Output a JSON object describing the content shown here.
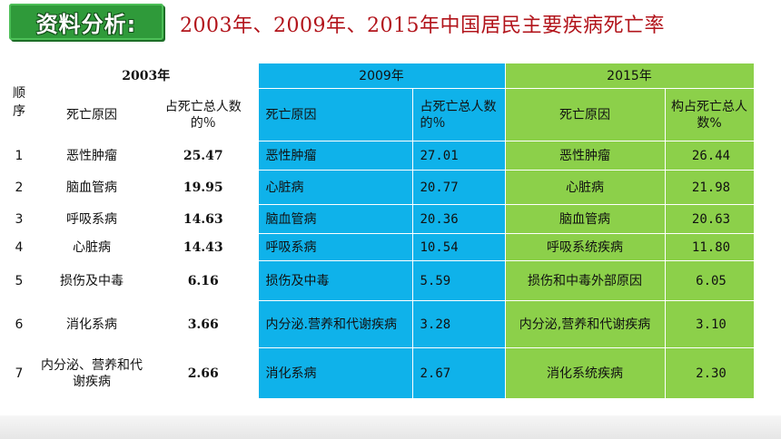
{
  "badge_label": "资料分析:",
  "title": "2003年、2009年、2015年中国居民主要疾病死亡率",
  "table": {
    "order_header": "顺序",
    "years": [
      "2003年",
      "2009年",
      "2015年"
    ],
    "cause_headers": [
      "死亡原因",
      "死亡原因",
      "死亡原因"
    ],
    "pct_headers": [
      "占死亡总人数的％",
      "占死亡总人数的％",
      "构占死亡总人数%"
    ],
    "rows": [
      {
        "order": "1",
        "c2003": "恶性肿瘤",
        "v2003": "25.47",
        "c2009": "恶性肿瘤",
        "v2009": "27.01",
        "c2015": "恶性肿瘤",
        "v2015": "26.44"
      },
      {
        "order": "2",
        "c2003": "脑血管病",
        "v2003": "19.95",
        "c2009": "心脏病",
        "v2009": "20.77",
        "c2015": "心脏病",
        "v2015": "21.98"
      },
      {
        "order": "3",
        "c2003": "呼吸系病",
        "v2003": "14.63",
        "c2009": "脑血管病",
        "v2009": "20.36",
        "c2015": "脑血管病",
        "v2015": "20.63"
      },
      {
        "order": "4",
        "c2003": "心脏病",
        "v2003": "14.43",
        "c2009": "呼吸系病",
        "v2009": "10.54",
        "c2015": "呼吸系统疾病",
        "v2015": "11.80"
      },
      {
        "order": "5",
        "c2003": "损伤及中毒",
        "v2003": "6.16",
        "c2009": "损伤及中毒",
        "v2009": "5.59",
        "c2015": "损伤和中毒外部原因",
        "v2015": "6.05"
      },
      {
        "order": "6",
        "c2003": "消化系病",
        "v2003": "3.66",
        "c2009": "内分泌.营养和代谢疾病",
        "v2009": "3.28",
        "c2015": "内分泌,营养和代谢疾病",
        "v2015": "3.10"
      },
      {
        "order": "7",
        "c2003": "内分泌、营养和代谢疾病",
        "v2003": "2.66",
        "c2009": "消化系病",
        "v2009": "2.67",
        "c2015": "消化系统疾病",
        "v2015": "2.30"
      }
    ]
  },
  "colors": {
    "col2009": "#0fb2ea",
    "col2015": "#8cd04a",
    "title": "#b2141b",
    "badge": "#2f9a3a"
  }
}
